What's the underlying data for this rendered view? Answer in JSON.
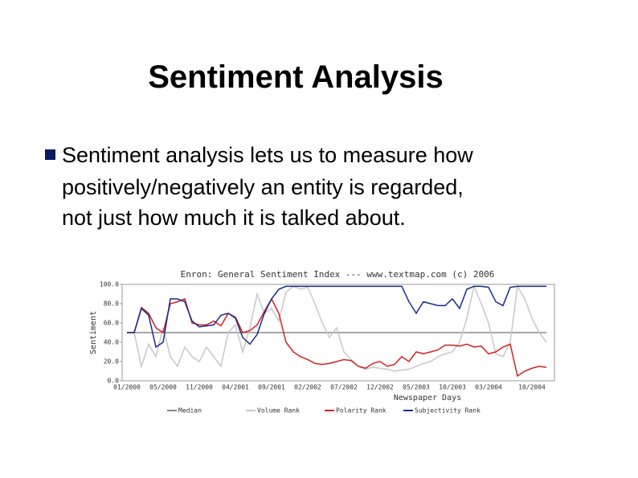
{
  "title": "Sentiment Analysis",
  "bullets": [
    "Sentiment analysis lets us to measure how",
    "positively/negatively an entity is regarded,",
    "not just how much it is talked about."
  ],
  "chart_data": {
    "type": "line",
    "title": "Enron: General Sentiment Index --- www.textmap.com (c) 2006",
    "xlabel": "Newspaper Days",
    "ylabel": "Sentiment",
    "categories": [
      "01/2000",
      null,
      null,
      null,
      null,
      "05/2000",
      null,
      null,
      null,
      null,
      "11/2000",
      null,
      null,
      null,
      null,
      "04/2001",
      null,
      null,
      null,
      null,
      "09/2001",
      null,
      null,
      null,
      null,
      "02/2002",
      null,
      null,
      null,
      null,
      "07/2002",
      null,
      null,
      null,
      null,
      "12/2002",
      null,
      null,
      null,
      null,
      "05/2003",
      null,
      null,
      null,
      null,
      "10/2003",
      null,
      null,
      null,
      null,
      "03/2004",
      null,
      null,
      null,
      null,
      null,
      "10/2004",
      null,
      null
    ],
    "ylim": [
      0,
      100
    ],
    "yticks": [
      {
        "value": 0,
        "label": "0.0"
      },
      {
        "value": 20,
        "label": "20.0"
      },
      {
        "value": 40,
        "label": "40.0"
      },
      {
        "value": 60,
        "label": "60.0"
      },
      {
        "value": 80,
        "label": "80.0"
      },
      {
        "value": 100,
        "label": "100.0"
      }
    ],
    "series": [
      {
        "name": "Median",
        "color": "#888888",
        "values": [
          50,
          50,
          50,
          50,
          50,
          50,
          50,
          50,
          50,
          50,
          50,
          50,
          50,
          50,
          50,
          50,
          50,
          50,
          50,
          50,
          50,
          50,
          50,
          50,
          50,
          50,
          50,
          50,
          50,
          50,
          50,
          50,
          50,
          50,
          50,
          50,
          50,
          50,
          50,
          50,
          50,
          50,
          50,
          50,
          50,
          50,
          50,
          50,
          50,
          50,
          50,
          50,
          50,
          50,
          50,
          50,
          50,
          50,
          50
        ]
      },
      {
        "name": "Volume Rank",
        "color": "#c8c8c8",
        "values": [
          50,
          50,
          15,
          38,
          25,
          55,
          25,
          15,
          35,
          25,
          20,
          35,
          25,
          15,
          50,
          58,
          30,
          55,
          90,
          70,
          75,
          62,
          92,
          98,
          95,
          97,
          80,
          60,
          45,
          55,
          30,
          22,
          15,
          12,
          14,
          13,
          12,
          10,
          11,
          12,
          15,
          18,
          20,
          25,
          28,
          30,
          40,
          65,
          98,
          80,
          60,
          28,
          25,
          40,
          98,
          85,
          65,
          50,
          40
        ]
      },
      {
        "name": "Polarity Rank",
        "color": "#d42020",
        "values": [
          50,
          50,
          76,
          70,
          55,
          50,
          80,
          82,
          85,
          60,
          58,
          58,
          62,
          57,
          70,
          66,
          50,
          52,
          58,
          72,
          85,
          70,
          40,
          30,
          25,
          22,
          18,
          17,
          18,
          20,
          22,
          21,
          15,
          13,
          18,
          20,
          15,
          17,
          25,
          20,
          30,
          28,
          30,
          32,
          37,
          37,
          36,
          38,
          35,
          36,
          28,
          30,
          35,
          38,
          5,
          10,
          13,
          15,
          14
        ]
      },
      {
        "name": "Subjectivity Rank",
        "color": "#1a2a8c",
        "values": [
          50,
          50,
          75,
          68,
          35,
          40,
          85,
          85,
          82,
          62,
          56,
          57,
          58,
          68,
          70,
          65,
          45,
          38,
          48,
          70,
          85,
          95,
          98,
          98,
          98,
          98,
          98,
          98,
          98,
          98,
          98,
          98,
          98,
          98,
          98,
          98,
          98,
          98,
          98,
          82,
          70,
          82,
          80,
          78,
          78,
          85,
          75,
          95,
          98,
          98,
          97,
          82,
          78,
          97,
          98,
          98,
          98,
          98,
          98
        ]
      }
    ]
  }
}
